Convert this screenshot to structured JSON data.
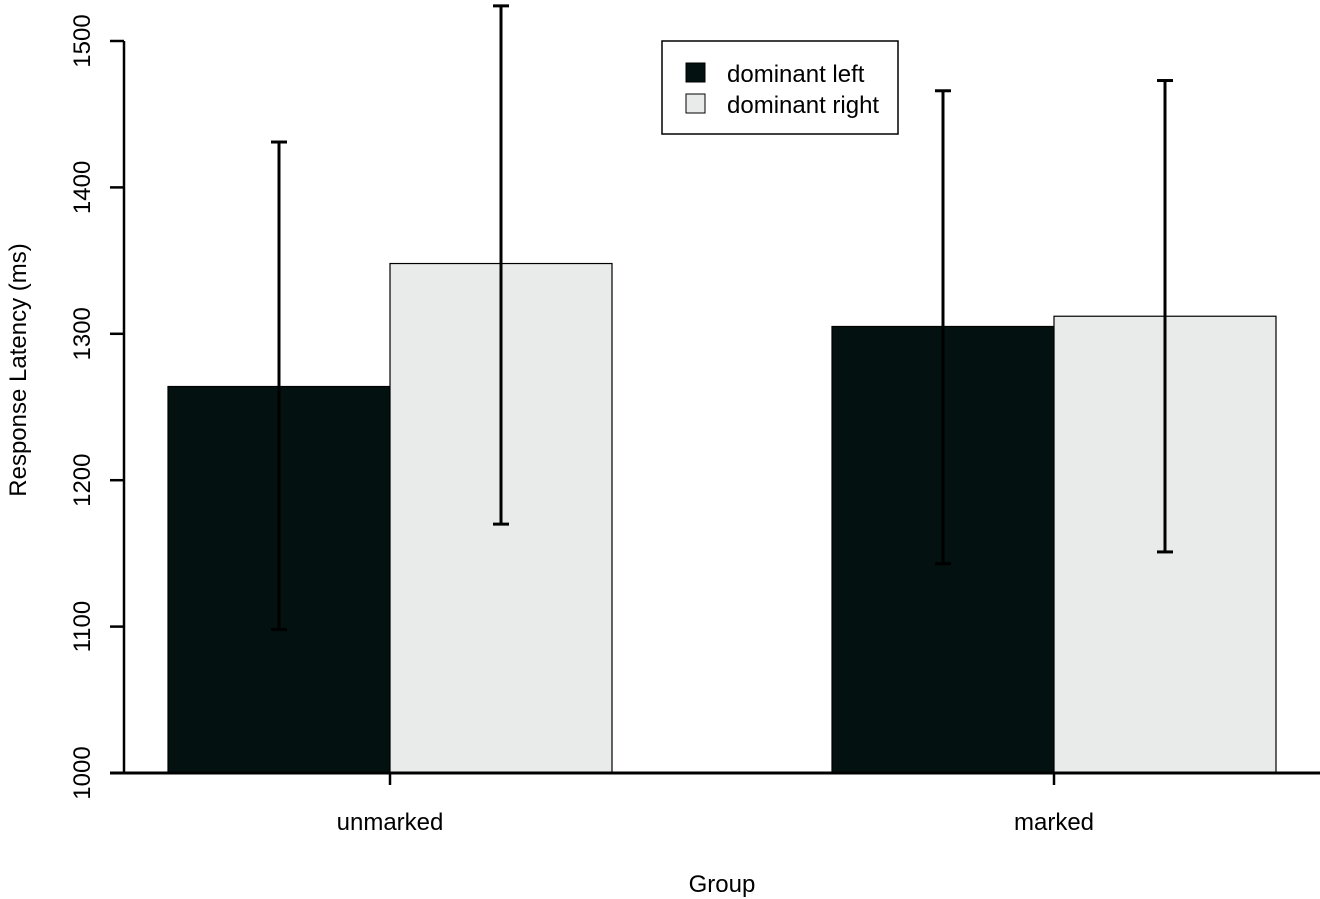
{
  "chart_data": {
    "type": "bar",
    "title": "",
    "xlabel": "Group",
    "ylabel": "Response Latency (ms)",
    "categories": [
      "unmarked",
      "marked"
    ],
    "ylim": [
      1000,
      1500
    ],
    "yticks": [
      1000,
      1100,
      1200,
      1300,
      1400,
      1500
    ],
    "grid": false,
    "legend_position": "top-center",
    "series": [
      {
        "name": "dominant left",
        "color": "#031110",
        "values": [
          1264,
          1305
        ],
        "error_low": [
          1098,
          1143
        ],
        "error_high": [
          1431,
          1466
        ]
      },
      {
        "name": "dominant right",
        "color": "#e8ebea",
        "values": [
          1348,
          1312
        ],
        "error_low": [
          1170,
          1151
        ],
        "error_high": [
          1524,
          1473
        ]
      }
    ]
  }
}
